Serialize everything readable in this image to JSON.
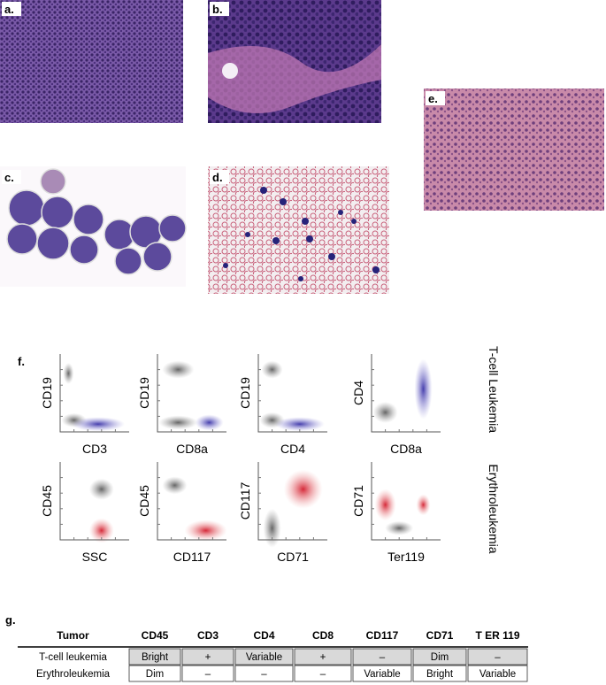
{
  "panels": {
    "a": "a.",
    "b": "b.",
    "c": "c.",
    "d": "d.",
    "e": "e.",
    "f": "f.",
    "g": "g."
  },
  "flow": {
    "row_labels": [
      "T-cell Leukemia",
      "Erythroleukemia"
    ],
    "plots": [
      {
        "y_label": "CD19",
        "x_label": "CD3"
      },
      {
        "y_label": "CD19",
        "x_label": "CD8a"
      },
      {
        "y_label": "CD19",
        "x_label": "CD4"
      },
      {
        "y_label": "CD4",
        "x_label": "CD8a"
      },
      {
        "y_label": "CD45",
        "x_label": "SSC"
      },
      {
        "y_label": "CD45",
        "x_label": "CD117"
      },
      {
        "y_label": "CD117",
        "x_label": "CD71"
      },
      {
        "y_label": "CD71",
        "x_label": "Ter119"
      }
    ]
  },
  "table": {
    "headers": [
      "Tumor",
      "CD45",
      "CD3",
      "CD4",
      "CD8",
      "CD117",
      "CD71",
      "T ER 119"
    ],
    "rows": [
      [
        "T-cell leukemia",
        "Bright",
        "+",
        "Variable",
        "+",
        "–",
        "Dim",
        "–"
      ],
      [
        "Erythroleukemia",
        "Dim",
        "–",
        "–",
        "–",
        "Variable",
        "Bright",
        "Variable"
      ]
    ]
  }
}
